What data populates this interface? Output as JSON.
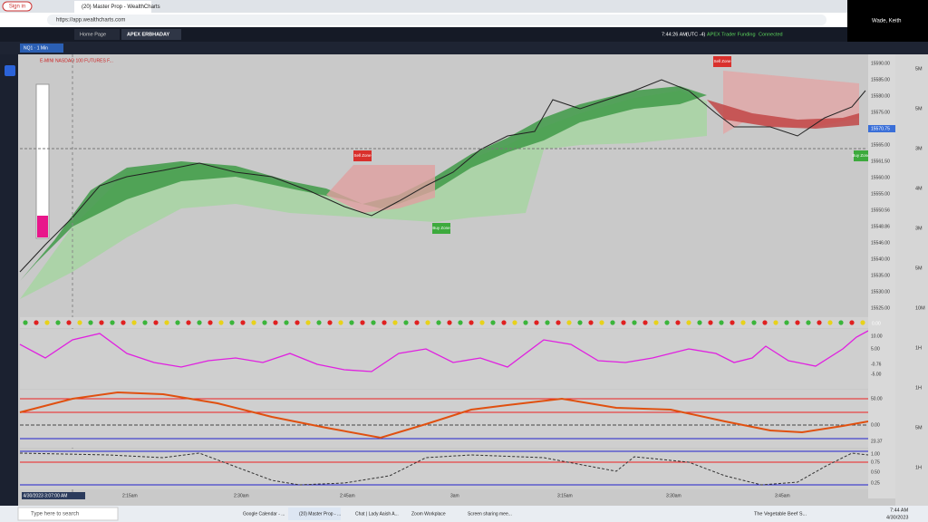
{
  "browser": {
    "profile_button": "Sign in",
    "tab_title": "(20) Master Prop - WealthCharts",
    "url": "https://app.wealthcharts.com"
  },
  "zoom": {
    "participant": "Wade, Keith"
  },
  "app_bar": {
    "tabs": [
      "Home Page",
      "APEX ERBHADAY"
    ],
    "clock": "7:44:26 AM",
    "timezone": "(UTC -4)",
    "account": "APEX Trader Funding",
    "status": "Connected"
  },
  "chart": {
    "symbol_tab": "NQ1 · 1 Min",
    "header": "E-MINI NASDAQ 100 FUTURES F...",
    "zones": [
      "Sell Zone",
      "Buy Zone",
      "Sell Zone",
      "Buy Zone"
    ],
    "price_labels": [
      "15590.00",
      "15585.00",
      "15580.00",
      "15575.00",
      "15570.75",
      "15565.00",
      "15561.50",
      "15560.00",
      "15555.00",
      "15550.56",
      "15548.86",
      "15546.00",
      "15540.00",
      "15535.00",
      "15530.00",
      "15525.00"
    ],
    "interval_labels": [
      "5M",
      "5M",
      "3M",
      "4M",
      "3M",
      "5M",
      "10M",
      "1H",
      "1H",
      "5M",
      "1H"
    ],
    "time_labels": [
      "4/30/2023 3:07:00 AM",
      "2:15am",
      "2:30am",
      "2:45am",
      "3am",
      "3:15am",
      "3:30am",
      "3:45am"
    ],
    "panels": {
      "dots_value": "0.00",
      "oscillator_labels": [
        "10.00",
        "5.00",
        "-0.76",
        "-5.00"
      ],
      "momentum_labels": [
        "50.00",
        "0.00",
        "23.37"
      ],
      "stochastic_labels": [
        "1.00",
        "0.75",
        "0.50",
        "0.25"
      ]
    }
  },
  "taskbar": {
    "search": "Type here to search",
    "apps": [
      "Google Calendar - ...",
      "(20) Master Prop - ...",
      "Chat | Lady Aaish A...",
      "Zoom Workplace",
      "Screen sharing mee..."
    ],
    "weather": "The Vegetable Beef S...",
    "time": "7:44 AM",
    "date": "4/30/2023"
  }
}
